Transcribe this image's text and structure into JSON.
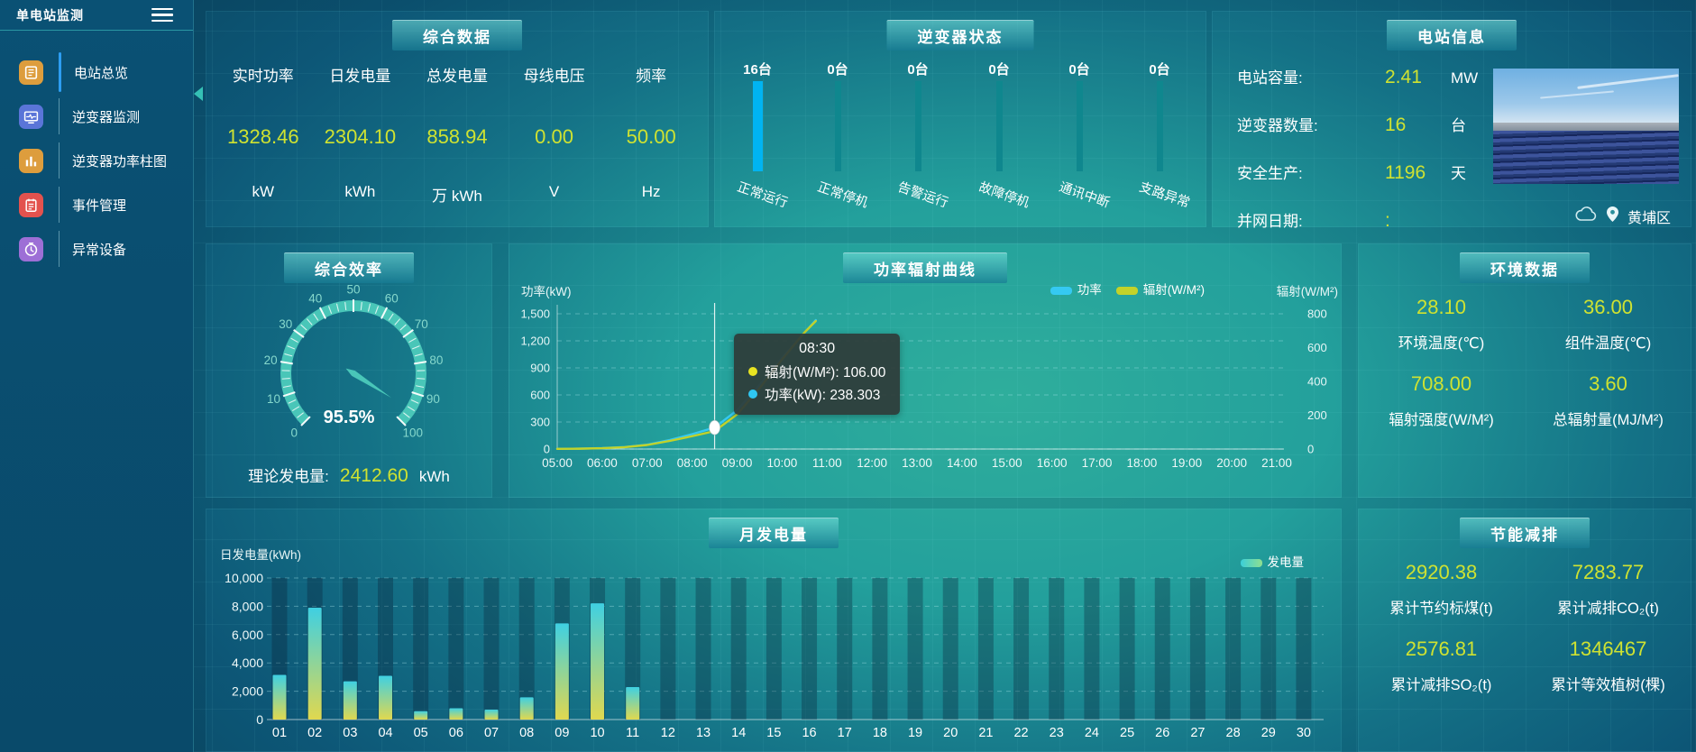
{
  "sidebar": {
    "title": "单电站监测",
    "items": [
      {
        "label": "电站总览",
        "icon": "overview-icon",
        "color": "#dd9d3d",
        "active": true
      },
      {
        "label": "逆变器监测",
        "icon": "inverter-monitor-icon",
        "color": "#5a75d8",
        "active": false
      },
      {
        "label": "逆变器功率柱图",
        "icon": "power-bars-icon",
        "color": "#dd9d3d",
        "active": false
      },
      {
        "label": "事件管理",
        "icon": "event-icon",
        "color": "#e3524e",
        "active": false
      },
      {
        "label": "异常设备",
        "icon": "abnormal-icon",
        "color": "#9d6fd6",
        "active": false
      }
    ]
  },
  "panels": {
    "summary": {
      "title": "综合数据",
      "metrics": [
        {
          "label": "实时功率",
          "value": "1328.46",
          "unit": "kW"
        },
        {
          "label": "日发电量",
          "value": "2304.10",
          "unit": "kWh"
        },
        {
          "label": "总发电量",
          "value": "858.94",
          "unit": "万 kWh"
        },
        {
          "label": "母线电压",
          "value": "0.00",
          "unit": "V"
        },
        {
          "label": "频率",
          "value": "50.00",
          "unit": "Hz"
        }
      ]
    },
    "inverter_status": {
      "title": "逆变器状态",
      "bars": [
        {
          "count": "16台",
          "label": "正常运行",
          "highlight": true
        },
        {
          "count": "0台",
          "label": "正常停机",
          "highlight": false
        },
        {
          "count": "0台",
          "label": "告警运行",
          "highlight": false
        },
        {
          "count": "0台",
          "label": "故障停机",
          "highlight": false
        },
        {
          "count": "0台",
          "label": "通讯中断",
          "highlight": false
        },
        {
          "count": "0台",
          "label": "支路异常",
          "highlight": false
        }
      ],
      "highlight_color": "#00b4f2",
      "normal_color": "#0f878e"
    },
    "station_info": {
      "title": "电站信息",
      "rows": [
        {
          "label": "电站容量:",
          "value": "2.41",
          "unit": "MW"
        },
        {
          "label": "逆变器数量:",
          "value": "16",
          "unit": "台"
        },
        {
          "label": "安全生产:",
          "value": "1196",
          "unit": "天"
        },
        {
          "label": "并网日期:",
          "value": ":",
          "unit": ""
        }
      ],
      "location": "黄埔区"
    },
    "efficiency": {
      "title": "综合效率",
      "gauge_label": "95.5%",
      "theory_label": "理论发电量:",
      "theory_value": "2412.60",
      "theory_unit": "kWh"
    },
    "power_radiation": {
      "title": "功率辐射曲线"
    },
    "environment": {
      "title": "环境数据",
      "cells": [
        {
          "value": "28.10",
          "label": "环境温度(℃)"
        },
        {
          "value": "36.00",
          "label": "组件温度(℃)"
        },
        {
          "value": "708.00",
          "label": "辐射强度(W/M²)"
        },
        {
          "value": "3.60",
          "label": "总辐射量(MJ/M²)"
        }
      ]
    },
    "monthly": {
      "title": "月发电量"
    },
    "saving": {
      "title": "节能减排",
      "cells": [
        {
          "value": "2920.38",
          "label": "累计节约标煤(t)"
        },
        {
          "value": "7283.77",
          "label": "累计减排CO₂(t)"
        },
        {
          "value": "2576.81",
          "label": "累计减排SO₂(t)"
        },
        {
          "value": "1346467",
          "label": "累计等效植树(棵)"
        }
      ]
    }
  },
  "chart_data": [
    {
      "type": "line",
      "title": "功率辐射曲线",
      "x_hours": [
        5,
        5.5,
        6,
        6.5,
        7,
        7.5,
        8,
        8.5,
        9,
        9.5,
        10,
        10.5,
        10.75
      ],
      "x_ticks": [
        "05:00",
        "06:00",
        "07:00",
        "08:00",
        "09:00",
        "10:00",
        "11:00",
        "12:00",
        "13:00",
        "14:00",
        "15:00",
        "16:00",
        "17:00",
        "18:00",
        "19:00",
        "20:00",
        "21:00"
      ],
      "series": [
        {
          "name": "功率",
          "color": "#35c9f2",
          "axis": "left",
          "values": [
            2,
            4,
            10,
            22,
            48,
            100,
            165,
            238.3,
            430,
            710,
            1010,
            1290,
            1430
          ]
        },
        {
          "name": "辐射(W/M²)",
          "color": "#c3d229",
          "axis": "right",
          "values": [
            1,
            2,
            5,
            11,
            24,
            48,
            76,
            106,
            205,
            360,
            530,
            690,
            757
          ]
        }
      ],
      "left_axis": {
        "name": "功率(kW)",
        "min": 0,
        "max": 1500,
        "ticks": [
          "1,500",
          "1,200",
          "900",
          "600",
          "300",
          "0"
        ]
      },
      "right_axis": {
        "name": "辐射(W/M²)",
        "min": 0,
        "max": 800,
        "ticks": [
          "800",
          "600",
          "400",
          "200",
          "0"
        ]
      },
      "tooltip": {
        "time": "08:30",
        "x_hour": 8.5,
        "rows": [
          {
            "label": "辐射(W/M²)",
            "value": "106.00",
            "color": "#e8e421"
          },
          {
            "label": "功率(kW)",
            "value": "238.303",
            "color": "#2fc7f2"
          }
        ]
      },
      "legend_position": "top-right",
      "grid": true
    },
    {
      "type": "bar",
      "title": "月发电量",
      "ylabel": "日发电量(kWh)",
      "legend": "发电量",
      "categories": [
        "01",
        "02",
        "03",
        "04",
        "05",
        "06",
        "07",
        "08",
        "09",
        "10",
        "11",
        "12",
        "13",
        "14",
        "15",
        "16",
        "17",
        "18",
        "19",
        "20",
        "21",
        "22",
        "23",
        "24",
        "25",
        "26",
        "27",
        "28",
        "29",
        "30"
      ],
      "values": [
        3150,
        7900,
        2700,
        3090,
        590,
        800,
        700,
        1570,
        6790,
        8210,
        2290,
        0,
        0,
        0,
        0,
        0,
        0,
        0,
        0,
        0,
        0,
        0,
        0,
        0,
        0,
        0,
        0,
        0,
        0,
        0
      ],
      "ylim": [
        0,
        10000
      ],
      "yticks": [
        "10,000",
        "8,000",
        "6,000",
        "4,000",
        "2,000",
        "0"
      ],
      "grid": true
    },
    {
      "type": "gauge",
      "title": "综合效率",
      "value": 95.5,
      "min": 0,
      "max": 100,
      "label": "95.5%"
    },
    {
      "type": "bar",
      "title": "逆变器状态",
      "categories": [
        "正常运行",
        "正常停机",
        "告警运行",
        "故障停机",
        "通讯中断",
        "支路异常"
      ],
      "values": [
        16,
        0,
        0,
        0,
        0,
        0
      ],
      "unit": "台"
    }
  ]
}
